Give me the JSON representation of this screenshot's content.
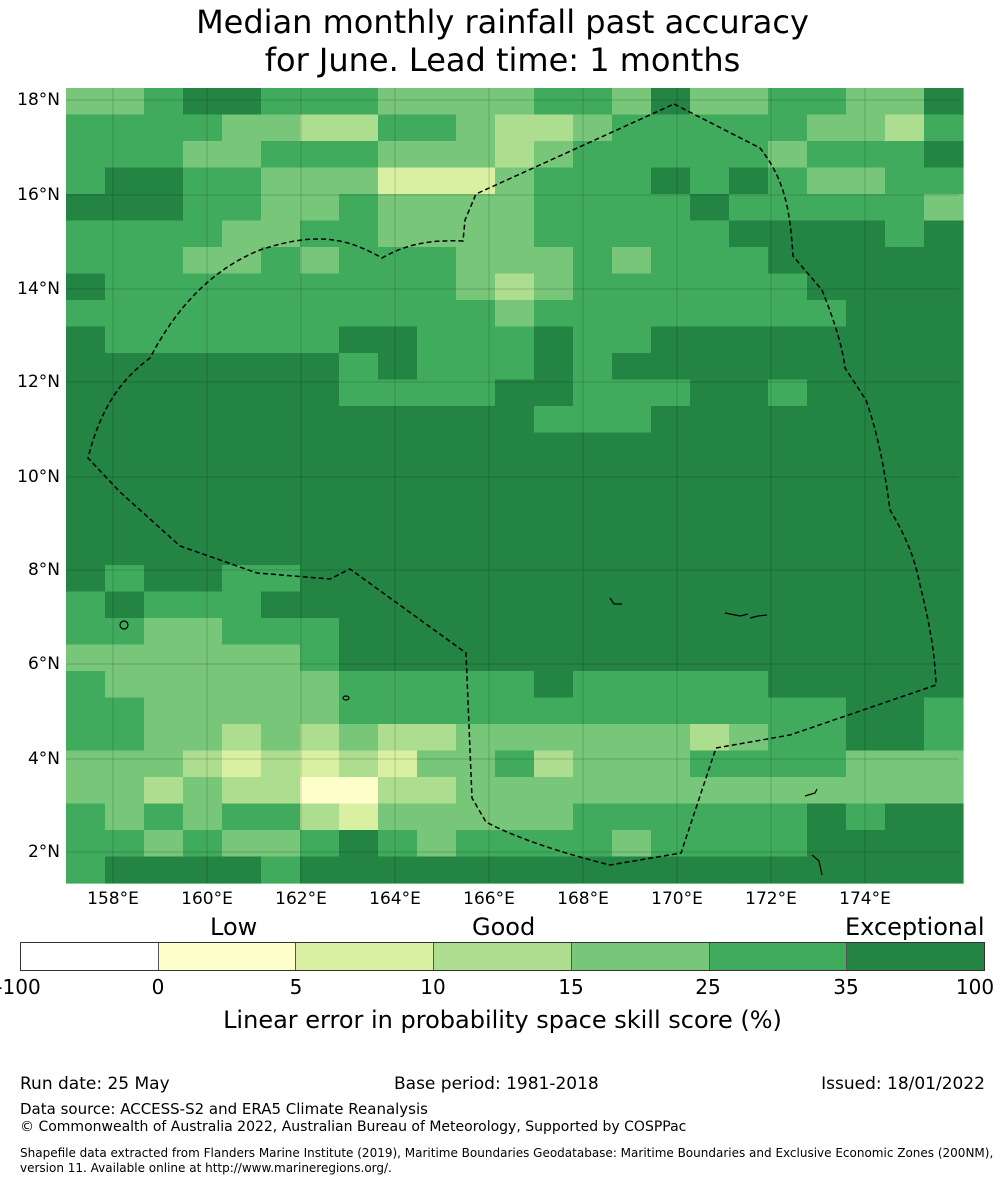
{
  "title": {
    "line1": "Median monthly rainfall past accuracy",
    "line2": "for June. Lead time: 1 months"
  },
  "map": {
    "lon_range": [
      157,
      176
    ],
    "lat_range": [
      1.4,
      18.3
    ],
    "lat_ticks": [
      "18°N",
      "16°N",
      "14°N",
      "12°N",
      "10°N",
      "8°N",
      "6°N",
      "4°N",
      "2°N"
    ],
    "lon_ticks": [
      "158°E",
      "160°E",
      "162°E",
      "164°E",
      "166°E",
      "168°E",
      "170°E",
      "172°E",
      "174°E"
    ],
    "boundary_style": "dashed black line",
    "gridlines": true
  },
  "legend": {
    "categories": [
      "Low",
      "Good",
      "Exceptional"
    ],
    "tick_labels": [
      "-100",
      "0",
      "5",
      "10",
      "15",
      "25",
      "35",
      "100"
    ],
    "colors": [
      "#ffffff",
      "#ffffcc",
      "#d9f0a3",
      "#addd8e",
      "#78c679",
      "#41ab5d",
      "#238443"
    ],
    "label": "Linear error in probability space skill score (%)"
  },
  "footer": {
    "run_date": "Run date: 25 May",
    "base_period": "Base period: 1981-2018",
    "issued": "Issued: 18/01/2022",
    "data_source": "Data source: ACCESS-S2 and ERA5 Climate Reanalysis",
    "copyright": "© Commonwealth of Australia 2022, Australian Bureau of Meteorology, Supported by COSPPac",
    "shapefile": "Shapefile data extracted from Flanders Marine Institute (2019), Maritime Boundaries Geodatabase: Maritime Boundaries and Exclusive Economic Zones (200NM), version 11. Available online at http://www.marineregions.org/."
  }
}
